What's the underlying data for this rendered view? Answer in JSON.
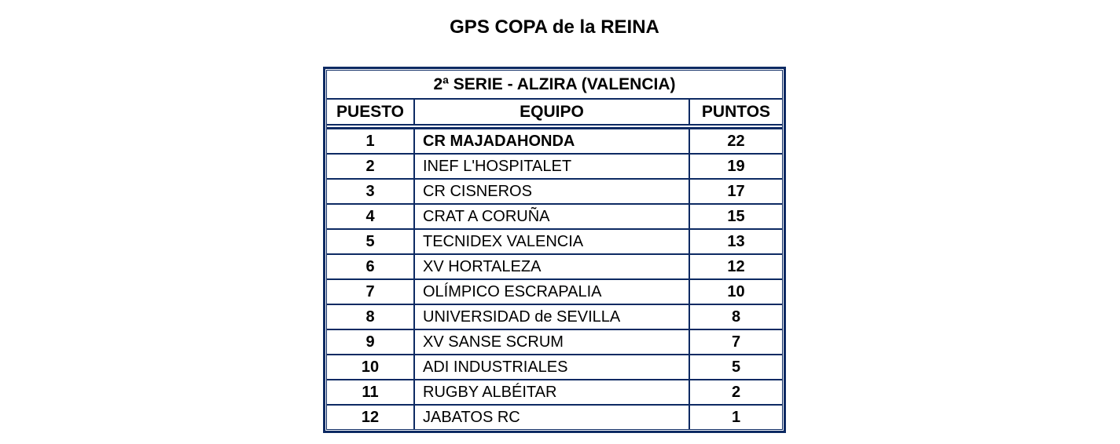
{
  "colors": {
    "border_navy": "#0d2a63",
    "text": "#000000",
    "page_background": "#ffffff"
  },
  "chart_data": {
    "type": "table",
    "title": "GPS COPA de la REINA",
    "caption": "2ª SERIE - ALZIRA (VALENCIA)",
    "columns": [
      "PUESTO",
      "EQUIPO",
      "PUNTOS"
    ],
    "rows": [
      [
        "1",
        "CR MAJADAHONDA",
        "22"
      ],
      [
        "2",
        "INEF L'HOSPITALET",
        "19"
      ],
      [
        "3",
        "CR CISNEROS",
        "17"
      ],
      [
        "4",
        "CRAT A CORUÑA",
        "15"
      ],
      [
        "5",
        "TECNIDEX VALENCIA",
        "13"
      ],
      [
        "6",
        "XV HORTALEZA",
        "12"
      ],
      [
        "7",
        "OLÍMPICO ESCRAPALIA",
        "10"
      ],
      [
        "8",
        "UNIVERSIDAD de SEVILLA",
        "8"
      ],
      [
        "9",
        "XV SANSE SCRUM",
        "7"
      ],
      [
        "10",
        "ADI INDUSTRIALES",
        "5"
      ],
      [
        "11",
        "RUGBY ALBÉITAR",
        "2"
      ],
      [
        "12",
        "JABATOS RC",
        "1"
      ]
    ],
    "layout": {
      "legend": "none",
      "grid": "on",
      "row_1_team_bold": true
    }
  }
}
